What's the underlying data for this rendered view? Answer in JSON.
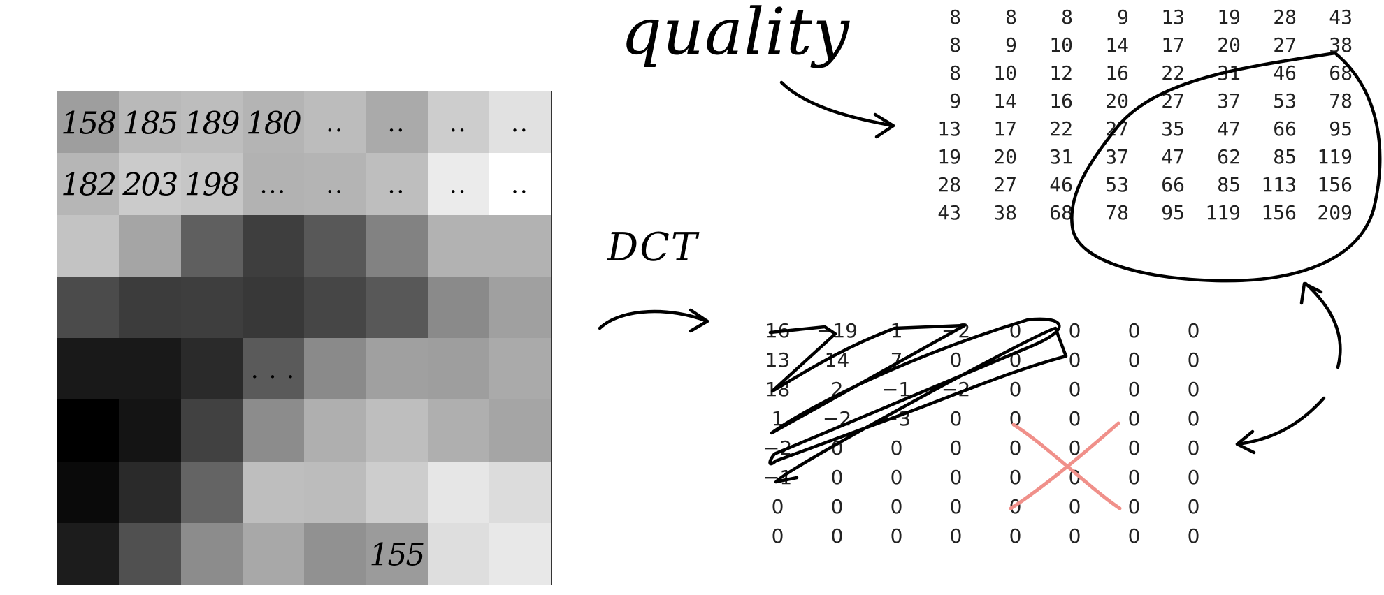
{
  "labels": {
    "quality": "quality",
    "dct": "DCT"
  },
  "pixel_block": {
    "gray_levels": [
      [
        158,
        185,
        189,
        180,
        188,
        170,
        205,
        225
      ],
      [
        182,
        203,
        198,
        178,
        180,
        190,
        235,
        255
      ],
      [
        195,
        165,
        95,
        62,
        88,
        130,
        178,
        178
      ],
      [
        75,
        60,
        62,
        56,
        70,
        88,
        138,
        160
      ],
      [
        25,
        25,
        42,
        90,
        138,
        160,
        158,
        170
      ],
      [
        0,
        20,
        65,
        140,
        175,
        190,
        175,
        165
      ],
      [
        10,
        42,
        100,
        190,
        188,
        205,
        230,
        220
      ],
      [
        28,
        80,
        140,
        168,
        145,
        155,
        222,
        232
      ]
    ],
    "annotations": [
      [
        "158",
        "185",
        "189",
        "180",
        "..",
        "..",
        "..",
        ".."
      ],
      [
        "182",
        "203",
        "198",
        "...",
        "..",
        "..",
        "..",
        ".."
      ],
      [
        "",
        "",
        "",
        "",
        "",
        "",
        "",
        ""
      ],
      [
        "",
        "",
        "",
        "",
        "",
        "",
        "",
        ""
      ],
      [
        "",
        "",
        "",
        ". . .",
        "",
        "",
        "",
        ""
      ],
      [
        "",
        "",
        "",
        "",
        "",
        "",
        "",
        ""
      ],
      [
        "",
        "",
        "",
        "",
        "",
        "",
        "",
        ""
      ],
      [
        "",
        "",
        "",
        "",
        "",
        "155",
        "",
        ""
      ]
    ]
  },
  "quantization_table": [
    [
      "8",
      "8",
      "8",
      "9",
      "13",
      "19",
      "28",
      "43"
    ],
    [
      "8",
      "9",
      "10",
      "14",
      "17",
      "20",
      "27",
      "38"
    ],
    [
      "8",
      "10",
      "12",
      "16",
      "22",
      "31",
      "46",
      "68"
    ],
    [
      "9",
      "14",
      "16",
      "20",
      "27",
      "37",
      "53",
      "78"
    ],
    [
      "13",
      "17",
      "22",
      "27",
      "35",
      "47",
      "66",
      "95"
    ],
    [
      "19",
      "20",
      "31",
      "37",
      "47",
      "62",
      "85",
      "119"
    ],
    [
      "28",
      "27",
      "46",
      "53",
      "66",
      "85",
      "113",
      "156"
    ],
    [
      "43",
      "38",
      "68",
      "78",
      "95",
      "119",
      "156",
      "209"
    ]
  ],
  "dct_coefficients": [
    [
      "16",
      "−19",
      "1",
      "−2",
      "0",
      "0",
      "0",
      "0"
    ],
    [
      "13",
      "14",
      "7",
      "0",
      "0",
      "0",
      "0",
      "0"
    ],
    [
      "18",
      "2",
      "−1",
      "−2",
      "0",
      "0",
      "0",
      "0"
    ],
    [
      "1",
      "−2",
      "−3",
      "0",
      "0",
      "0",
      "0",
      "0"
    ],
    [
      "−2",
      "0",
      "0",
      "0",
      "0",
      "0",
      "0",
      "0"
    ],
    [
      "−1",
      "0",
      "0",
      "0",
      "0",
      "0",
      "0",
      "0"
    ],
    [
      "0",
      "0",
      "0",
      "0",
      "0",
      "0",
      "0",
      "0"
    ],
    [
      "0",
      "0",
      "0",
      "0",
      "0",
      "0",
      "0",
      "0"
    ]
  ],
  "colors": {
    "ink": "#000000",
    "cross": "#f0908a",
    "text": "#222222"
  }
}
